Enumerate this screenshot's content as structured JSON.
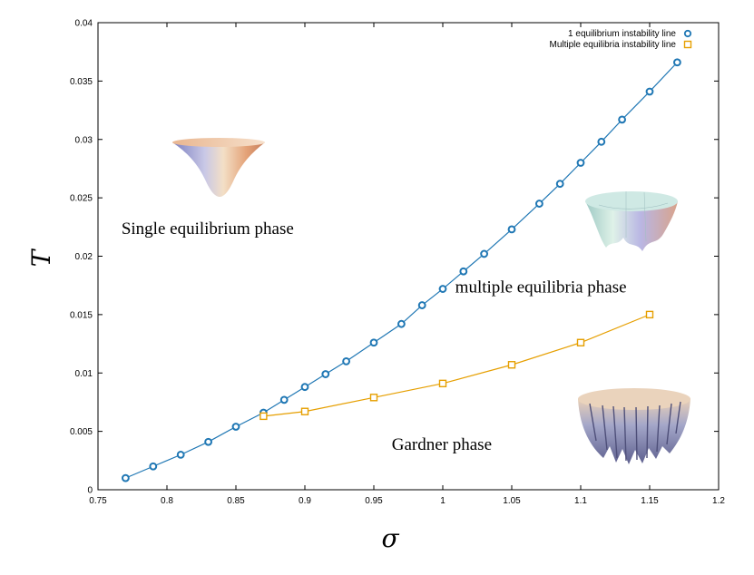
{
  "chart_data": {
    "type": "line",
    "xlabel": "σ",
    "ylabel": "T",
    "xlim": [
      0.75,
      1.2
    ],
    "ylim": [
      0,
      0.04
    ],
    "x_ticks": [
      "0.75",
      "0.8",
      "0.85",
      "0.9",
      "0.95",
      "1",
      "1.05",
      "1.1",
      "1.15",
      "1.2"
    ],
    "y_ticks": [
      "0",
      "0.005",
      "0.01",
      "0.015",
      "0.02",
      "0.025",
      "0.03",
      "0.035",
      "0.04"
    ],
    "grid": false,
    "legend_position": "top-right",
    "series": [
      {
        "name": "1 equilibrium  instability line",
        "marker": "circle",
        "color": "#1f77b4",
        "x": [
          0.77,
          0.79,
          0.81,
          0.83,
          0.85,
          0.87,
          0.885,
          0.9,
          0.915,
          0.93,
          0.95,
          0.97,
          0.985,
          1.0,
          1.015,
          1.03,
          1.05,
          1.07,
          1.085,
          1.1,
          1.115,
          1.13,
          1.15,
          1.17
        ],
        "y": [
          0.001,
          0.002,
          0.003,
          0.0041,
          0.0054,
          0.0066,
          0.0077,
          0.0088,
          0.0099,
          0.011,
          0.0126,
          0.0142,
          0.0158,
          0.0172,
          0.0187,
          0.0202,
          0.0223,
          0.0245,
          0.0262,
          0.028,
          0.0298,
          0.0317,
          0.0341,
          0.0366
        ]
      },
      {
        "name": "Multiple equilibria instability line",
        "marker": "square",
        "color": "#e69f00",
        "x": [
          0.87,
          0.9,
          0.95,
          1.0,
          1.05,
          1.1,
          1.15
        ],
        "y": [
          0.0063,
          0.0067,
          0.0079,
          0.0091,
          0.0107,
          0.0126,
          0.015
        ]
      }
    ],
    "annotations": [
      {
        "id": "single",
        "text": "Single equilibrium phase",
        "x": 0.767,
        "y": 0.0219
      },
      {
        "id": "multiple",
        "text": "multiple equilibria phase",
        "x": 1.009,
        "y": 0.0169
      },
      {
        "id": "gardner",
        "text": "Gardner phase",
        "x": 0.963,
        "y": 0.0034
      }
    ]
  }
}
